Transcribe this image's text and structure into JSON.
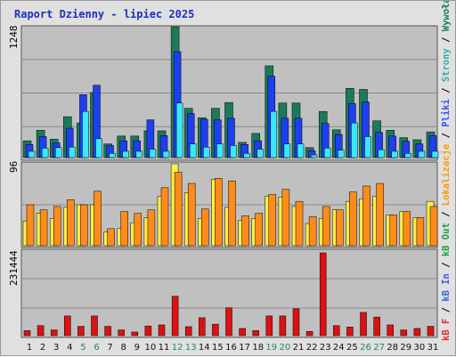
{
  "window": {
    "title": "Raport Dzienny -  lipiec 2025"
  },
  "legend": {
    "items": [
      {
        "text": "Wywołania",
        "color": "#157f57"
      },
      {
        "text": "Strony",
        "color": "#33aaaa"
      },
      {
        "text": "Pliki",
        "color": "#2f55ef"
      },
      {
        "text": "Lokalizacje",
        "color": "#ff9900"
      },
      {
        "text": "kB Out",
        "color": "#1f9f3f"
      },
      {
        "text": "kB In",
        "color": "#3b63d6"
      },
      {
        "text": "kB F",
        "color": "#ee2b2b"
      }
    ],
    "separator": " / "
  },
  "colors": {
    "panel_bg": "#c0c0c0",
    "hits": "#1a7a5a",
    "files": "#1e3ff0",
    "pages": "#38e8ff",
    "sites": "#ff8c1a",
    "sites_back": "#ffee44",
    "kbytes": "#dd1111",
    "weekend": "#1e8a5e",
    "weekday": "#111111"
  },
  "chart_data": [
    {
      "type": "bar",
      "name_note": "top panel",
      "y_max_label": "1248",
      "ylim": [
        0,
        1248
      ],
      "categories": [
        "1",
        "2",
        "3",
        "4",
        "5",
        "6",
        "7",
        "8",
        "9",
        "10",
        "11",
        "12",
        "13",
        "14",
        "15",
        "16",
        "17",
        "18",
        "19",
        "20",
        "21",
        "22",
        "23",
        "24",
        "25",
        "26",
        "27",
        "28",
        "29",
        "30",
        "31"
      ],
      "weekend_days": [
        "5",
        "6",
        "12",
        "13",
        "19",
        "20",
        "26",
        "27"
      ],
      "series": [
        {
          "key": "hits",
          "values": [
            160,
            260,
            175,
            390,
            330,
            620,
            130,
            205,
            205,
            255,
            255,
            1248,
            470,
            380,
            470,
            525,
            145,
            230,
            875,
            520,
            520,
            95,
            440,
            265,
            660,
            650,
            350,
            260,
            190,
            170,
            245
          ]
        },
        {
          "key": "files",
          "values": [
            125,
            200,
            140,
            280,
            600,
            690,
            115,
            160,
            160,
            360,
            210,
            1010,
            420,
            365,
            360,
            375,
            125,
            160,
            775,
            375,
            375,
            65,
            325,
            220,
            515,
            530,
            240,
            205,
            155,
            130,
            210
          ]
        },
        {
          "key": "pages",
          "values": [
            60,
            90,
            95,
            100,
            440,
            180,
            40,
            60,
            60,
            80,
            60,
            520,
            130,
            100,
            130,
            115,
            40,
            80,
            440,
            130,
            130,
            25,
            90,
            70,
            330,
            200,
            75,
            60,
            40,
            60,
            60
          ]
        }
      ]
    },
    {
      "type": "bar",
      "name_note": "middle panel",
      "y_max_label": "96",
      "ylim": [
        0,
        96
      ],
      "categories": [
        "1",
        "2",
        "3",
        "4",
        "5",
        "6",
        "7",
        "8",
        "9",
        "10",
        "11",
        "12",
        "13",
        "14",
        "15",
        "16",
        "17",
        "18",
        "19",
        "20",
        "21",
        "22",
        "23",
        "24",
        "25",
        "26",
        "27",
        "28",
        "29",
        "30",
        "31"
      ],
      "series": [
        {
          "key": "sites_back",
          "values": [
            29,
            38,
            32,
            45,
            48,
            48,
            16,
            20,
            27,
            33,
            58,
            96,
            62,
            32,
            78,
            45,
            30,
            32,
            58,
            57,
            46,
            26,
            32,
            42,
            52,
            55,
            58,
            36,
            40,
            33,
            52
          ]
        },
        {
          "key": "sites",
          "values": [
            48,
            42,
            46,
            54,
            48,
            64,
            20,
            40,
            38,
            42,
            68,
            86,
            73,
            43,
            79,
            76,
            35,
            38,
            60,
            66,
            52,
            34,
            46,
            42,
            63,
            70,
            73,
            36,
            40,
            33,
            46
          ]
        }
      ]
    },
    {
      "type": "bar",
      "name_note": "bottom panel",
      "y_max_label": "231444",
      "ylim": [
        0,
        231444
      ],
      "categories": [
        "1",
        "2",
        "3",
        "4",
        "5",
        "6",
        "7",
        "8",
        "9",
        "10",
        "11",
        "12",
        "13",
        "14",
        "15",
        "16",
        "17",
        "18",
        "19",
        "20",
        "21",
        "22",
        "23",
        "24",
        "25",
        "26",
        "27",
        "28",
        "29",
        "30",
        "31"
      ],
      "series": [
        {
          "key": "kbytes",
          "values": [
            14000,
            28000,
            16000,
            55000,
            26000,
            55000,
            26000,
            16000,
            10000,
            27000,
            30000,
            110000,
            25000,
            50000,
            32000,
            78000,
            20000,
            14000,
            55000,
            55000,
            75000,
            12000,
            231444,
            28000,
            24000,
            65000,
            52000,
            30000,
            16000,
            20000,
            26000
          ]
        }
      ]
    }
  ]
}
